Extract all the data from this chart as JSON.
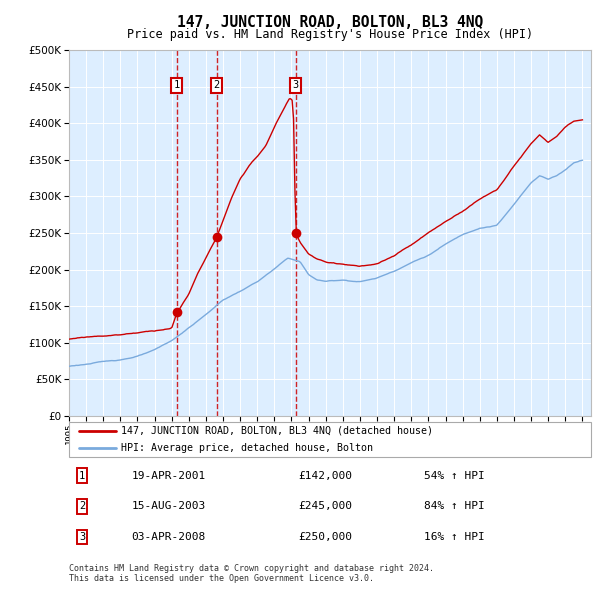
{
  "title": "147, JUNCTION ROAD, BOLTON, BL3 4NQ",
  "subtitle": "Price paid vs. HM Land Registry's House Price Index (HPI)",
  "legend_red": "147, JUNCTION ROAD, BOLTON, BL3 4NQ (detached house)",
  "legend_blue": "HPI: Average price, detached house, Bolton",
  "transactions": [
    {
      "num": 1,
      "date": "19-APR-2001",
      "price": 142000,
      "pct": "54%",
      "dir": "↑"
    },
    {
      "num": 2,
      "date": "15-AUG-2003",
      "price": 245000,
      "pct": "84%",
      "dir": "↑"
    },
    {
      "num": 3,
      "date": "03-APR-2008",
      "price": 250000,
      "pct": "16%",
      "dir": "↑"
    }
  ],
  "footnote1": "Contains HM Land Registry data © Crown copyright and database right 2024.",
  "footnote2": "This data is licensed under the Open Government Licence v3.0.",
  "red_color": "#cc0000",
  "blue_color": "#7aaadd",
  "bg_color": "#ddeeff",
  "ylim": [
    0,
    500000
  ],
  "yticks": [
    0,
    50000,
    100000,
    150000,
    200000,
    250000,
    300000,
    350000,
    400000,
    450000,
    500000
  ],
  "year_start": 1995,
  "year_end": 2025,
  "vline_years": [
    2001.29,
    2003.62,
    2008.25
  ],
  "hpi_milestones": {
    "1995.0": 68000,
    "1996.0": 71000,
    "1997.0": 74000,
    "1998.0": 77000,
    "1999.0": 82000,
    "2000.0": 90000,
    "2001.0": 102000,
    "2002.0": 120000,
    "2003.0": 138000,
    "2004.0": 158000,
    "2005.0": 170000,
    "2006.0": 183000,
    "2007.0": 200000,
    "2007.8": 215000,
    "2008.5": 210000,
    "2009.0": 192000,
    "2009.5": 185000,
    "2010.0": 183000,
    "2011.0": 185000,
    "2012.0": 183000,
    "2013.0": 188000,
    "2014.0": 198000,
    "2015.0": 210000,
    "2016.0": 220000,
    "2017.0": 235000,
    "2018.0": 248000,
    "2019.0": 258000,
    "2020.0": 262000,
    "2021.0": 290000,
    "2022.0": 320000,
    "2022.5": 330000,
    "2023.0": 325000,
    "2023.5": 330000,
    "2024.0": 338000,
    "2024.5": 348000,
    "2025.0": 352000
  },
  "red_milestones": {
    "1995.0": 105000,
    "1996.0": 108000,
    "1997.0": 110000,
    "1998.0": 112000,
    "1999.0": 115000,
    "2000.0": 118000,
    "2001.0": 122000,
    "2001.29": 142000,
    "2002.0": 168000,
    "2002.5": 195000,
    "2003.0": 218000,
    "2003.62": 245000,
    "2004.0": 268000,
    "2004.5": 298000,
    "2005.0": 325000,
    "2005.5": 342000,
    "2006.0": 355000,
    "2006.5": 370000,
    "2007.0": 395000,
    "2007.5": 418000,
    "2007.9": 435000,
    "2008.1": 430000,
    "2008.25": 250000,
    "2008.5": 238000,
    "2009.0": 222000,
    "2009.5": 215000,
    "2010.0": 210000,
    "2011.0": 208000,
    "2012.0": 205000,
    "2013.0": 207000,
    "2014.0": 218000,
    "2015.0": 232000,
    "2016.0": 248000,
    "2017.0": 263000,
    "2018.0": 278000,
    "2019.0": 295000,
    "2020.0": 308000,
    "2021.0": 340000,
    "2022.0": 370000,
    "2022.5": 382000,
    "2023.0": 372000,
    "2023.5": 380000,
    "2024.0": 392000,
    "2024.5": 400000,
    "2025.0": 402000
  }
}
